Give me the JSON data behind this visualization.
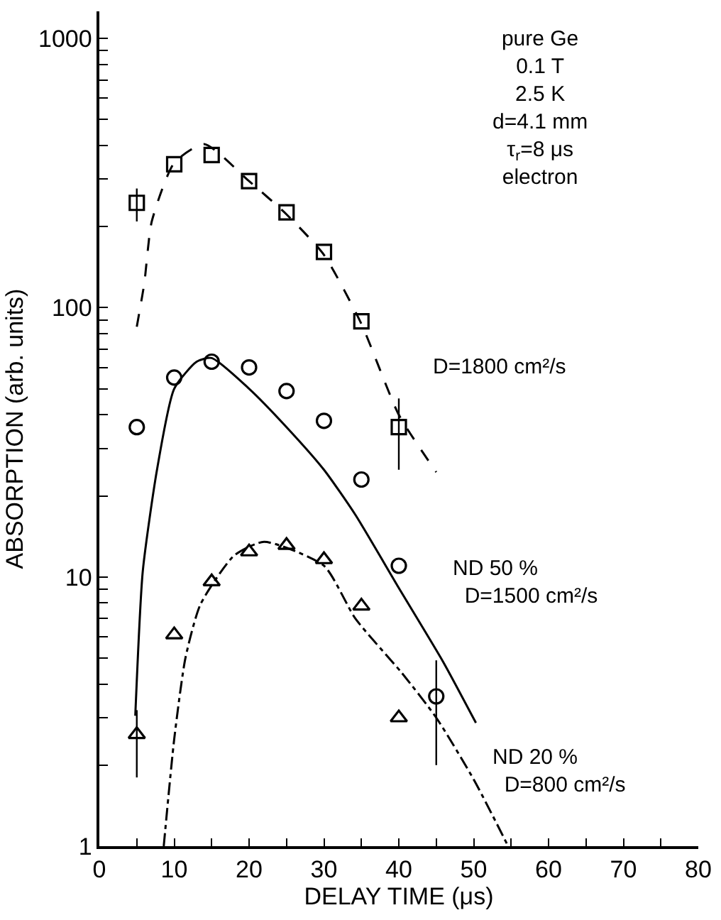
{
  "chart_data": {
    "type": "scatter",
    "xlabel": "DELAY TIME (μs)",
    "ylabel": "ABSORPTION (arb. units)",
    "xlim": [
      0,
      80
    ],
    "ylim": [
      1,
      1260
    ],
    "log": "y",
    "xticks": [
      0,
      {
        "value": 5,
        "label": null
      },
      10,
      {
        "value": 15,
        "label": null
      },
      20,
      {
        "value": 25,
        "label": null
      },
      30,
      {
        "value": 35,
        "label": null
      },
      40,
      {
        "value": 45,
        "label": null
      },
      50,
      {
        "value": 55,
        "label": null
      },
      60,
      {
        "value": 65,
        "label": null
      },
      70,
      {
        "value": 75,
        "label": null
      },
      80
    ],
    "yticks": [
      1,
      {
        "value": 2,
        "label": null
      },
      {
        "value": 3,
        "label": null
      },
      {
        "value": 4,
        "label": null
      },
      {
        "value": 5,
        "label": null
      },
      {
        "value": 6,
        "label": null
      },
      {
        "value": 7,
        "label": null
      },
      {
        "value": 8,
        "label": null
      },
      {
        "value": 9,
        "label": null
      },
      10,
      {
        "value": 20,
        "label": null
      },
      {
        "value": 30,
        "label": null
      },
      {
        "value": 40,
        "label": null
      },
      {
        "value": 50,
        "label": null
      },
      {
        "value": 60,
        "label": null
      },
      {
        "value": 70,
        "label": null
      },
      {
        "value": 80,
        "label": null
      },
      {
        "value": 90,
        "label": null
      },
      100,
      {
        "value": 200,
        "label": null
      },
      {
        "value": 300,
        "label": null
      },
      {
        "value": 400,
        "label": null
      },
      {
        "value": 500,
        "label": null
      },
      {
        "value": 600,
        "label": null
      },
      {
        "value": 700,
        "label": null
      },
      {
        "value": 800,
        "label": null
      },
      {
        "value": 900,
        "label": null
      },
      1000
    ],
    "series": [
      {
        "marker": "square",
        "color": "#000000",
        "x": [
          5,
          10,
          15,
          20,
          25,
          30,
          35,
          40
        ],
        "values": [
          245,
          341,
          369,
          295,
          226,
          161,
          89,
          36
        ],
        "errors": [
          [
            209,
            277
          ],
          null,
          null,
          null,
          null,
          null,
          null,
          [
            25,
            46
          ]
        ]
      },
      {
        "marker": "circle",
        "color": "#000000",
        "x": [
          5,
          10,
          15,
          20,
          25,
          30,
          35,
          40,
          45
        ],
        "values": [
          36,
          55,
          63,
          60,
          49,
          38,
          23,
          11,
          3.6
        ],
        "errors": [
          null,
          null,
          null,
          null,
          null,
          null,
          null,
          null,
          [
            2.0,
            4.9
          ]
        ]
      },
      {
        "marker": "triangle",
        "color": "#000000",
        "x": [
          5,
          10,
          15,
          20,
          25,
          30,
          35,
          40
        ],
        "values": [
          2.6,
          6.1,
          9.6,
          12.4,
          13.1,
          11.6,
          7.8,
          3.0
        ],
        "errors": [
          [
            1.8,
            3.2
          ],
          null,
          null,
          null,
          null,
          null,
          null,
          null
        ]
      },
      {
        "type": "line",
        "marker": "none",
        "line_style": "dashed",
        "color": "#000000",
        "x": [
          5,
          6,
          7,
          10,
          14,
          20,
          25,
          30,
          35,
          40,
          45
        ],
        "values": [
          85,
          123,
          209,
          345,
          405,
          295,
          222,
          157,
          87,
          40,
          24.5
        ]
      },
      {
        "type": "line",
        "marker": "none",
        "line_style": "solid",
        "color": "#000000",
        "x": [
          4.8,
          5.8,
          7.7,
          10,
          13,
          15,
          20,
          25,
          30,
          34.2,
          40,
          45.9,
          50.3
        ],
        "values": [
          3.05,
          10.5,
          25,
          50,
          63,
          65,
          50,
          36,
          25,
          17,
          9.1,
          4.85,
          2.87
        ]
      },
      {
        "type": "line",
        "marker": "none",
        "line_style": "dashdot",
        "color": "#000000",
        "x": [
          8.6,
          10,
          11.5,
          13.5,
          18,
          22,
          30,
          34.2,
          40.4,
          45,
          50,
          54.6
        ],
        "values": [
          1,
          2.5,
          5.0,
          7.9,
          12,
          13.5,
          11,
          7.0,
          4.4,
          3.0,
          1.77,
          1
        ]
      }
    ],
    "annotations": [
      "pure Ge\n0.1 T\n2.5 K\nd=4.1 mm\nτ$_{r}$=8 μs\nelectron",
      "D=1800 cm²/s",
      "ND 50 %\n  D=1500 cm²/s",
      "ND 20 %\n  D=800 cm²/s"
    ]
  }
}
